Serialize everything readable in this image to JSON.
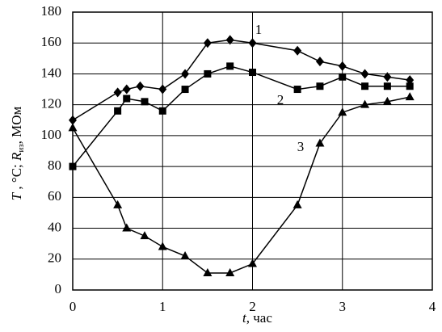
{
  "chart_data": {
    "type": "line",
    "xlabel": [
      "t",
      ", час"
    ],
    "ylabel": [
      "T",
      " , °C; ",
      "R",
      "из",
      ", МОм"
    ],
    "xlim": [
      0,
      4
    ],
    "xticks": [
      0,
      1,
      2,
      3,
      4
    ],
    "ylim": [
      0,
      180
    ],
    "yticks": [
      0,
      20,
      40,
      60,
      80,
      100,
      120,
      140,
      160,
      180
    ],
    "grid": true,
    "series": [
      {
        "name": "1",
        "color": "#000000",
        "marker": "diamond",
        "x": [
          0,
          0.5,
          0.6,
          0.75,
          1,
          1.25,
          1.5,
          1.75,
          2,
          2.5,
          2.75,
          3,
          3.25,
          3.5,
          3.75
        ],
        "values": [
          110,
          128,
          130,
          132,
          130,
          140,
          160,
          162,
          160,
          155,
          148,
          145,
          140,
          138,
          136
        ]
      },
      {
        "name": "2",
        "color": "#000000",
        "marker": "square",
        "x": [
          0,
          0.5,
          0.6,
          0.8,
          1,
          1.25,
          1.5,
          1.75,
          2,
          2.5,
          2.75,
          3,
          3.25,
          3.5,
          3.75
        ],
        "values": [
          80,
          116,
          124,
          122,
          116,
          130,
          140,
          145,
          141,
          130,
          132,
          138,
          132,
          132,
          132
        ]
      },
      {
        "name": "3",
        "color": "#000000",
        "marker": "triangle",
        "x": [
          0,
          0.5,
          0.6,
          0.8,
          1,
          1.25,
          1.5,
          1.75,
          2,
          2.5,
          2.75,
          3,
          3.25,
          3.5,
          3.75
        ],
        "values": [
          105,
          55,
          40,
          35,
          28,
          22,
          11,
          11,
          17,
          55,
          95,
          115,
          120,
          122,
          125
        ]
      }
    ]
  }
}
